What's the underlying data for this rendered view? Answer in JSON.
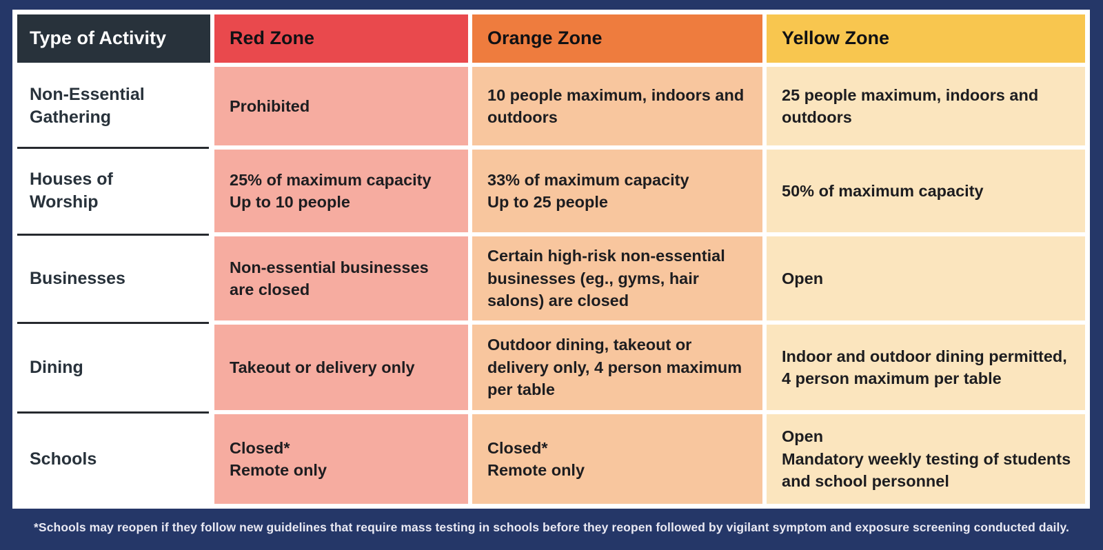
{
  "colors": {
    "frame_navy": "#253768",
    "activity_header_bg": "#28323B",
    "red_header": "#E9494D",
    "orange_header": "#EE7C3E",
    "yellow_header": "#F8C64F",
    "red_body": "#F6ACA0",
    "orange_body": "#F8C69E",
    "yellow_body": "#FBE5BE",
    "body_text": "#1d1d20",
    "label_text": "#28323B",
    "footnote_text": "#E9E9F3"
  },
  "table": {
    "header": {
      "activity": "Type of Activity",
      "red": "Red Zone",
      "orange": "Orange Zone",
      "yellow": "Yellow Zone"
    },
    "rows": [
      {
        "activity": "Non-Essential\nGathering",
        "red": "Prohibited",
        "orange": "10 people maximum, indoors and outdoors",
        "yellow": "25 people maximum, indoors and outdoors"
      },
      {
        "activity": "Houses of\nWorship",
        "red": "25% of maximum capacity\nUp to 10 people",
        "orange": "33% of maximum capacity\nUp to 25 people",
        "yellow": "50% of maximum capacity"
      },
      {
        "activity": "Businesses",
        "red": "Non-essential businesses are closed",
        "orange": "Certain high-risk non-essential businesses (eg., gyms, hair salons) are closed",
        "yellow": "Open"
      },
      {
        "activity": "Dining",
        "red": "Takeout or delivery only",
        "orange": "Outdoor dining, takeout or delivery only, 4 person maximum per table",
        "yellow": "Indoor and outdoor dining permitted, 4 person maximum per table"
      },
      {
        "activity": "Schools",
        "red": "Closed*\nRemote only",
        "orange": "Closed*\nRemote only",
        "yellow": "Open\nMandatory weekly testing of students and school personnel"
      }
    ]
  },
  "footnote": "*Schools may reopen if they follow new guidelines that require mass testing in schools before they reopen followed by vigilant symptom and exposure screening conducted daily.",
  "chart_data": {
    "type": "table",
    "title": "",
    "columns": [
      "Type of Activity",
      "Red Zone",
      "Orange Zone",
      "Yellow Zone"
    ],
    "rows": [
      [
        "Non-Essential Gathering",
        "Prohibited",
        "10 people maximum, indoors and outdoors",
        "25 people maximum, indoors and outdoors"
      ],
      [
        "Houses of Worship",
        "25% of maximum capacity Up to 10 people",
        "33% of maximum capacity Up to 25 people",
        "50% of maximum capacity"
      ],
      [
        "Businesses",
        "Non-essential businesses are closed",
        "Certain high-risk non-essential businesses (eg., gyms, hair salons) are closed",
        "Open"
      ],
      [
        "Dining",
        "Takeout or delivery only",
        "Outdoor dining, takeout or delivery only, 4 person maximum per table",
        "Indoor and outdoor dining permitted, 4 person maximum per table"
      ],
      [
        "Schools",
        "Closed* Remote only",
        "Closed* Remote only",
        "Open Mandatory weekly testing of students and school personnel"
      ]
    ],
    "footnote": "*Schools may reopen if they follow new guidelines that require mass testing in schools before they reopen followed by vigilant symptom and exposure screening conducted daily."
  }
}
